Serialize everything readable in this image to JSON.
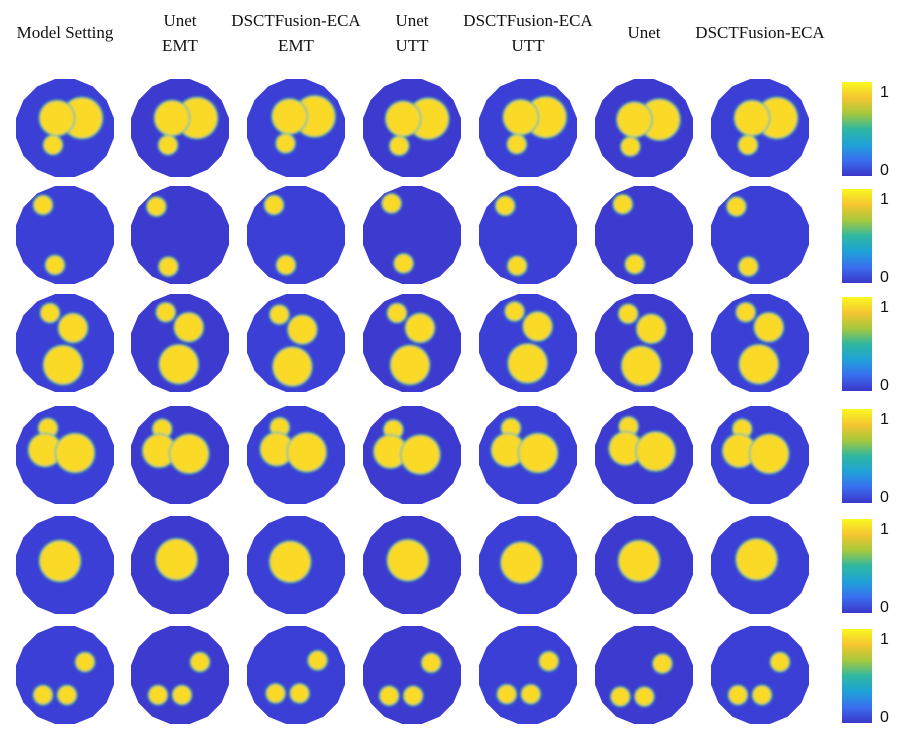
{
  "headers": [
    {
      "line1": "Model Setting",
      "line2": ""
    },
    {
      "line1": "Unet",
      "line2": "EMT"
    },
    {
      "line1": "DSCTFusion-ECA",
      "line2": "EMT"
    },
    {
      "line1": "Unet",
      "line2": "UTT"
    },
    {
      "line1": "DSCTFusion-ECA",
      "line2": "UTT"
    },
    {
      "line1": "Unet",
      "line2": ""
    },
    {
      "line1": "DSCTFusion-ECA",
      "line2": ""
    }
  ],
  "colorbar": {
    "max_label": "1",
    "min_label": "0",
    "background_color": "#3b3fd6",
    "inclusion_color": "#fada28"
  },
  "rows": 6
}
